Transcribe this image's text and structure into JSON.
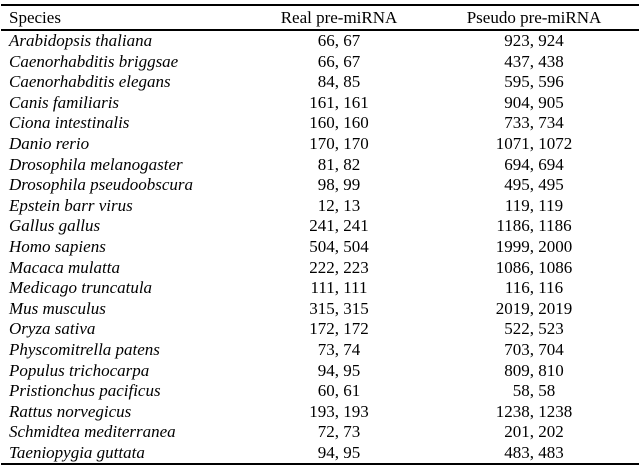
{
  "colors": {
    "background": "#ffffff",
    "text": "#000000",
    "rule": "#000000"
  },
  "table": {
    "columns": [
      "Species",
      "Real pre-miRNA",
      "Pseudo pre-miRNA"
    ],
    "rows": [
      {
        "species": "Arabidopsis thaliana",
        "real": "66, 67",
        "pseudo": "923, 924"
      },
      {
        "species": "Caenorhabditis briggsae",
        "real": "66, 67",
        "pseudo": "437, 438"
      },
      {
        "species": "Caenorhabditis elegans",
        "real": "84, 85",
        "pseudo": "595, 596"
      },
      {
        "species": "Canis familiaris",
        "real": "161, 161",
        "pseudo": "904, 905"
      },
      {
        "species": "Ciona intestinalis",
        "real": "160, 160",
        "pseudo": "733, 734"
      },
      {
        "species": "Danio rerio",
        "real": "170, 170",
        "pseudo": "1071, 1072"
      },
      {
        "species": "Drosophila melanogaster",
        "real": "81, 82",
        "pseudo": "694, 694"
      },
      {
        "species": "Drosophila pseudoobscura",
        "real": "98, 99",
        "pseudo": "495, 495"
      },
      {
        "species": "Epstein barr virus",
        "real": "12, 13",
        "pseudo": "119, 119"
      },
      {
        "species": "Gallus gallus",
        "real": "241, 241",
        "pseudo": "1186, 1186"
      },
      {
        "species": "Homo sapiens",
        "real": "504, 504",
        "pseudo": "1999, 2000"
      },
      {
        "species": "Macaca mulatta",
        "real": "222, 223",
        "pseudo": "1086, 1086"
      },
      {
        "species": "Medicago truncatula",
        "real": "111, 111",
        "pseudo": "116, 116"
      },
      {
        "species": "Mus musculus",
        "real": "315, 315",
        "pseudo": "2019, 2019"
      },
      {
        "species": "Oryza sativa",
        "real": "172, 172",
        "pseudo": "522, 523"
      },
      {
        "species": "Physcomitrella patens",
        "real": "73, 74",
        "pseudo": "703, 704"
      },
      {
        "species": "Populus trichocarpa",
        "real": "94, 95",
        "pseudo": "809, 810"
      },
      {
        "species": "Pristionchus pacificus",
        "real": "60, 61",
        "pseudo": "58, 58"
      },
      {
        "species": "Rattus norvegicus",
        "real": "193, 193",
        "pseudo": "1238, 1238"
      },
      {
        "species": "Schmidtea mediterranea",
        "real": "72, 73",
        "pseudo": "201, 202"
      },
      {
        "species": "Taeniopygia guttata",
        "real": "94, 95",
        "pseudo": "483, 483"
      }
    ]
  }
}
